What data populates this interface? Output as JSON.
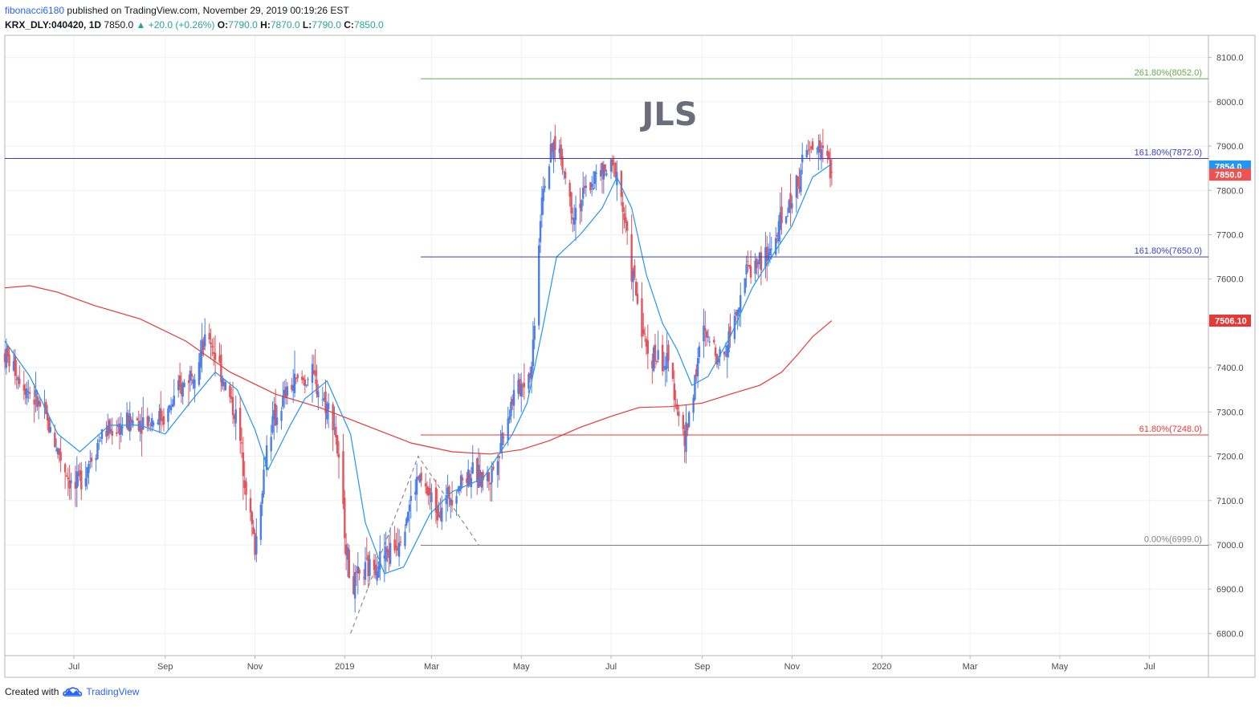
{
  "header": {
    "user": "fibonacci6180",
    "published": "published on TradingView.com, November 29, 2019 00:19:26 EST",
    "symbol": "KRX_DLY:040420, 1D",
    "last": "7850.0",
    "change_arrow": "▲",
    "change": "+20.0 (+0.26%)",
    "o_label": "O:",
    "o_value": "7790.0",
    "h_label": "H:",
    "h_value": "7870.0",
    "l_label": "L:",
    "l_value": "7790.0",
    "c_label": "C:",
    "c_value": "7850.0"
  },
  "footer": {
    "created": "Created with",
    "brand": "TradingView",
    "logo_icon": "tradingview-cloud-icon"
  },
  "chart_data": {
    "type": "candlestick",
    "watermark": "JLS",
    "ylim": [
      6750,
      8150
    ],
    "y_ticks": [
      "8100.0",
      "8000.0",
      "7900.0",
      "7800.0",
      "7700.0",
      "7600.0",
      "7500.0",
      "7400.0",
      "7300.0",
      "7200.0",
      "7100.0",
      "7000.0",
      "6900.0",
      "6800.0"
    ],
    "x_ticks": [
      "Jul",
      "Sep",
      "Nov",
      "2019",
      "Mar",
      "May",
      "Jul",
      "Sep",
      "Nov",
      "2020",
      "Mar",
      "May",
      "Jul"
    ],
    "x_date_range": [
      "2018-05-15",
      "2020-08-10"
    ],
    "x_tick_dates": [
      "2018-07-01",
      "2018-09-01",
      "2018-11-01",
      "2019-01-01",
      "2019-03-01",
      "2019-05-01",
      "2019-07-01",
      "2019-09-01",
      "2019-11-01",
      "2020-01-01",
      "2020-03-01",
      "2020-05-01",
      "2020-07-01"
    ],
    "fib_levels": [
      {
        "label": "261.80%(8052.0)",
        "value": 8052.0,
        "color": "#6aa84f"
      },
      {
        "label": "161.80%(7872.0)",
        "value": 7872.0,
        "color": "#3c3cc8"
      },
      {
        "label": "161.80%(7650.0)",
        "value": 7650.0,
        "color": "#3c3cc8"
      },
      {
        "label": "61.80%(7248.0)",
        "value": 7248.0,
        "color": "#e53935"
      },
      {
        "label": "0.00%(6999.0)",
        "value": 6999.0,
        "color": "#808080"
      }
    ],
    "price_tags": [
      {
        "label": "7854.0",
        "value": 7854.0,
        "color": "#2196f3"
      },
      {
        "label": "7850.0",
        "value": 7850.0,
        "color": "#ef5350"
      },
      {
        "label": "7506.10",
        "value": 7506.1,
        "color": "#e53935"
      }
    ],
    "ma_slow": {
      "color": "#e53935",
      "points": [
        [
          "2018-05-15",
          7580
        ],
        [
          "2018-06-01",
          7585
        ],
        [
          "2018-06-20",
          7570
        ],
        [
          "2018-07-15",
          7540
        ],
        [
          "2018-08-15",
          7510
        ],
        [
          "2018-09-15",
          7460
        ],
        [
          "2018-10-15",
          7390
        ],
        [
          "2018-11-15",
          7340
        ],
        [
          "2018-12-15",
          7310
        ],
        [
          "2019-01-15",
          7270
        ],
        [
          "2019-02-15",
          7230
        ],
        [
          "2019-03-15",
          7210
        ],
        [
          "2019-04-10",
          7205
        ],
        [
          "2019-05-01",
          7215
        ],
        [
          "2019-05-20",
          7235
        ],
        [
          "2019-06-10",
          7265
        ],
        [
          "2019-07-01",
          7290
        ],
        [
          "2019-07-20",
          7310
        ],
        [
          "2019-08-10",
          7312
        ],
        [
          "2019-09-01",
          7320
        ],
        [
          "2019-09-20",
          7340
        ],
        [
          "2019-10-10",
          7360
        ],
        [
          "2019-10-25",
          7390
        ],
        [
          "2019-11-05",
          7430
        ],
        [
          "2019-11-15",
          7470
        ],
        [
          "2019-11-28",
          7506
        ]
      ]
    },
    "ma_fast": {
      "color": "#2196f3",
      "points": [
        [
          "2018-05-15",
          7460
        ],
        [
          "2018-06-01",
          7380
        ],
        [
          "2018-06-20",
          7250
        ],
        [
          "2018-07-05",
          7210
        ],
        [
          "2018-07-25",
          7270
        ],
        [
          "2018-08-15",
          7270
        ],
        [
          "2018-09-01",
          7250
        ],
        [
          "2018-09-20",
          7330
        ],
        [
          "2018-10-05",
          7390
        ],
        [
          "2018-10-20",
          7350
        ],
        [
          "2018-11-01",
          7260
        ],
        [
          "2018-11-10",
          7170
        ],
        [
          "2018-11-25",
          7270
        ],
        [
          "2018-12-05",
          7330
        ],
        [
          "2018-12-20",
          7370
        ],
        [
          "2019-01-05",
          7250
        ],
        [
          "2019-01-15",
          7050
        ],
        [
          "2019-01-28",
          6935
        ],
        [
          "2019-02-10",
          6950
        ],
        [
          "2019-02-28",
          7070
        ],
        [
          "2019-03-15",
          7120
        ],
        [
          "2019-04-05",
          7150
        ],
        [
          "2019-04-25",
          7250
        ],
        [
          "2019-05-05",
          7320
        ],
        [
          "2019-05-15",
          7480
        ],
        [
          "2019-05-25",
          7650
        ],
        [
          "2019-06-10",
          7700
        ],
        [
          "2019-06-25",
          7760
        ],
        [
          "2019-07-05",
          7830
        ],
        [
          "2019-07-15",
          7760
        ],
        [
          "2019-07-25",
          7610
        ],
        [
          "2019-08-05",
          7500
        ],
        [
          "2019-08-15",
          7440
        ],
        [
          "2019-08-25",
          7360
        ],
        [
          "2019-09-05",
          7380
        ],
        [
          "2019-09-20",
          7470
        ],
        [
          "2019-10-05",
          7580
        ],
        [
          "2019-10-20",
          7660
        ],
        [
          "2019-11-01",
          7720
        ],
        [
          "2019-11-15",
          7830
        ],
        [
          "2019-11-28",
          7860
        ]
      ]
    },
    "ohlc_anchors": [
      [
        "2018-05-15",
        7430
      ],
      [
        "2018-06-10",
        7300
      ],
      [
        "2018-07-01",
        7120
      ],
      [
        "2018-07-20",
        7250
      ],
      [
        "2018-08-10",
        7280
      ],
      [
        "2018-09-01",
        7290
      ],
      [
        "2018-09-20",
        7400
      ],
      [
        "2018-10-01",
        7470
      ],
      [
        "2018-10-20",
        7280
      ],
      [
        "2018-11-01",
        6990
      ],
      [
        "2018-11-10",
        7250
      ],
      [
        "2018-11-25",
        7360
      ],
      [
        "2018-12-10",
        7380
      ],
      [
        "2018-12-25",
        7280
      ],
      [
        "2019-01-05",
        6900
      ],
      [
        "2019-01-15",
        6940
      ],
      [
        "2019-02-05",
        7000
      ],
      [
        "2019-02-20",
        7150
      ],
      [
        "2019-03-05",
        7080
      ],
      [
        "2019-03-25",
        7160
      ],
      [
        "2019-04-10",
        7150
      ],
      [
        "2019-04-25",
        7330
      ],
      [
        "2019-05-08",
        7400
      ],
      [
        "2019-05-15",
        7800
      ],
      [
        "2019-05-25",
        7920
      ],
      [
        "2019-06-05",
        7750
      ],
      [
        "2019-06-20",
        7830
      ],
      [
        "2019-07-05",
        7850
      ],
      [
        "2019-07-15",
        7620
      ],
      [
        "2019-07-25",
        7440
      ],
      [
        "2019-08-10",
        7400
      ],
      [
        "2019-08-20",
        7230
      ],
      [
        "2019-09-01",
        7480
      ],
      [
        "2019-09-15",
        7420
      ],
      [
        "2019-10-01",
        7620
      ],
      [
        "2019-10-15",
        7650
      ],
      [
        "2019-11-01",
        7780
      ],
      [
        "2019-11-10",
        7880
      ],
      [
        "2019-11-20",
        7900
      ],
      [
        "2019-11-28",
        7850
      ]
    ],
    "zigzag": [
      [
        "2019-01-05",
        6800
      ],
      [
        "2019-02-20",
        7200
      ],
      [
        "2019-04-02",
        7000
      ]
    ],
    "candle_colors": {
      "up": "#4a7ee8",
      "down": "#e0555b"
    }
  }
}
